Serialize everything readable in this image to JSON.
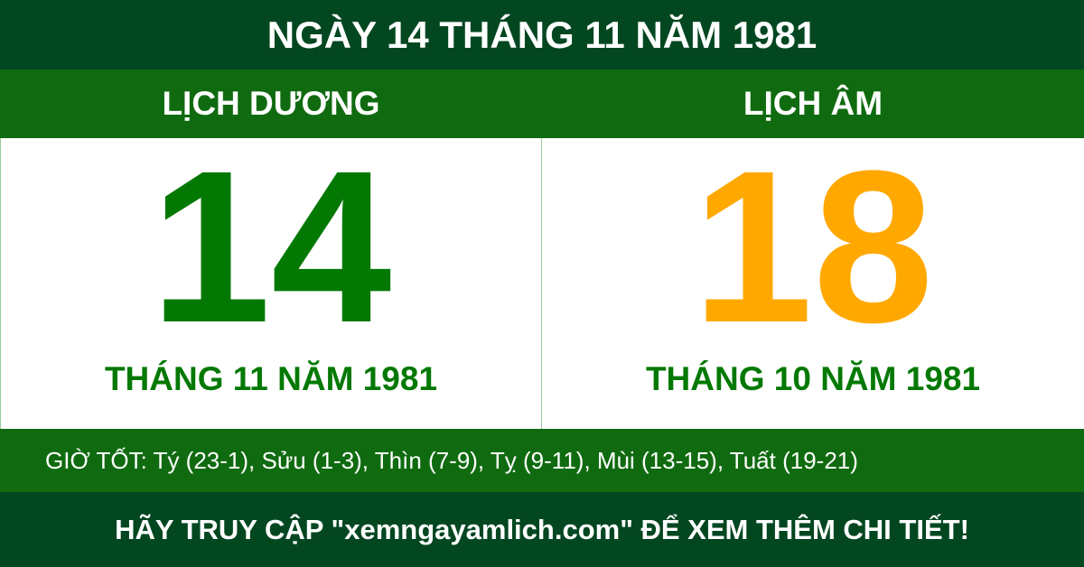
{
  "title": "NGÀY 14 THÁNG 11 NĂM 1981",
  "solar": {
    "heading": "LỊCH DƯƠNG",
    "day": "14",
    "month_year": "THÁNG 11 NĂM 1981"
  },
  "lunar": {
    "heading": "LỊCH ÂM",
    "day": "18",
    "month_year": "THÁNG 10 NĂM 1981"
  },
  "good_hours": "GIỜ TỐT: Tý (23-1), Sửu (1-3), Thìn (7-9), Tỵ (9-11), Mùi (13-15), Tuất (19-21)",
  "footer": "HÃY TRUY CẬP \"xemngayamlich.com\" ĐỂ XEM THÊM CHI TIẾT!",
  "colors": {
    "dark_green": "#034721",
    "green": "#106b10",
    "solar_day": "#037903",
    "lunar_day": "#ffa800"
  }
}
